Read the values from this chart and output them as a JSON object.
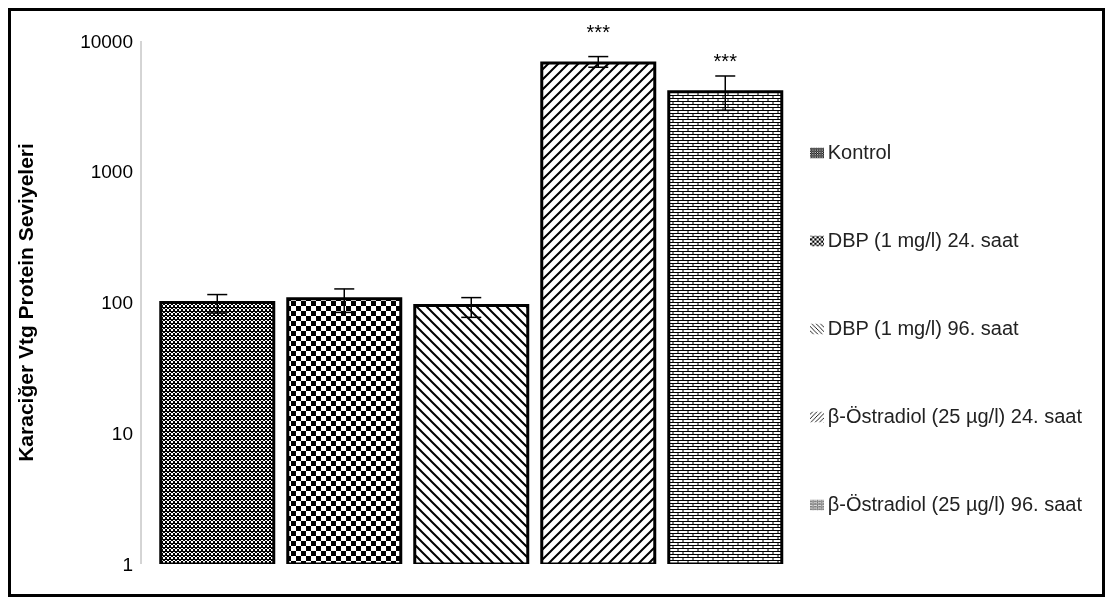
{
  "chart_data": {
    "type": "bar",
    "ylabel": "Karaciğer Vtg Protein Seviyeleri",
    "categories": [
      null
    ],
    "series": [
      {
        "name": "Kontrol",
        "color": "#000000",
        "values": [
          100
        ],
        "errors": [
          [
            83,
            115
          ]
        ]
      },
      {
        "name": "DBP (1 mg/l) 24. saat",
        "color": "#000000",
        "values": [
          107
        ],
        "errors": [
          [
            84,
            127
          ]
        ]
      },
      {
        "name": "DBP (1 mg/l) 96. saat",
        "color": "#000000",
        "values": [
          95
        ],
        "errors": [
          [
            77,
            109
          ]
        ]
      },
      {
        "name": "β-Östradiol (25 µg/l) 24. saat",
        "color": "#000000",
        "values": [
          6800
        ],
        "errors": [
          [
            6300,
            7600
          ]
        ],
        "value_labels": [
          "***"
        ]
      },
      {
        "name": "β-Östradiol (25 µg/l) 96. saat",
        "color": "#000000",
        "values": [
          4100
        ],
        "errors": [
          [
            2950,
            5400
          ]
        ],
        "value_labels": [
          "***"
        ]
      }
    ],
    "log": true,
    "ylim": [
      1,
      10000
    ],
    "yticks": [
      1,
      10,
      100,
      1000,
      10000
    ],
    "grid": false,
    "legend": "right",
    "tick_labels": "y"
  }
}
